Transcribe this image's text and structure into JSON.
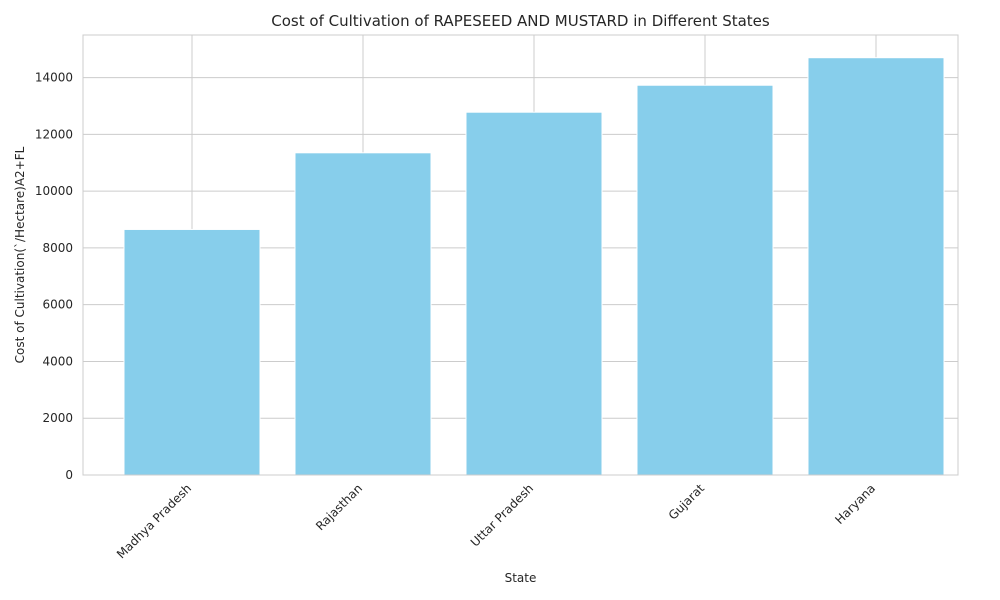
{
  "chart_data": {
    "type": "bar",
    "title": "Cost of Cultivation of RAPESEED AND MUSTARD in Different States",
    "xlabel": "State",
    "ylabel": "Cost of Cultivation(`/Hectare)A2+FL",
    "categories": [
      "Madhya Pradesh",
      "Rajasthan",
      "Uttar Pradesh",
      "Gujarat",
      "Haryana"
    ],
    "values": [
      8650,
      11350,
      12780,
      13730,
      14700
    ],
    "ylim": [
      0,
      15500
    ],
    "yticks": [
      0,
      2000,
      4000,
      6000,
      8000,
      10000,
      12000,
      14000
    ],
    "grid": true,
    "bar_color": "#87CEEB",
    "grid_color": "#cccccc"
  }
}
